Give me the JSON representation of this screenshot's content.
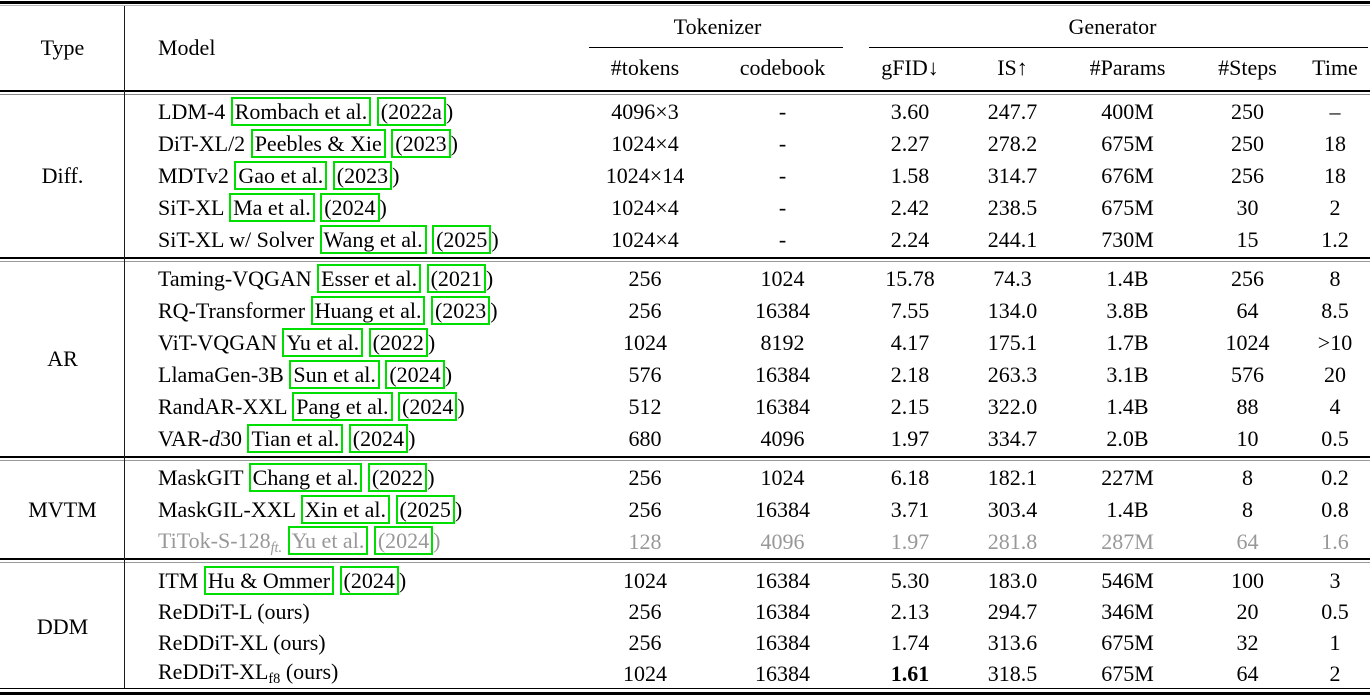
{
  "table": {
    "header": {
      "col_type": "Type",
      "col_model": "Model",
      "group_tokenizer": "Tokenizer",
      "group_generator": "Generator",
      "sub_columns": [
        "#tokens",
        "codebook",
        "gFID↓",
        "IS↑",
        "#Params",
        "#Steps",
        "Time"
      ]
    },
    "accent_colors": {
      "citation_box_green": "#00dd00",
      "muted_text_gray": "#989898"
    },
    "groups": [
      {
        "key": "diff",
        "type": "Diff.",
        "rows": [
          {
            "model_parts": [
              {
                "text": "LDM-4 "
              },
              {
                "text": "Rombach et al.",
                "box": true
              },
              {
                "text": " "
              },
              {
                "text": "(2022a",
                "box": true
              },
              {
                "text": ")"
              }
            ],
            "tokens": "4096×3",
            "codebook": "-",
            "gfid": "3.60",
            "is": "247.7",
            "params": "400M",
            "steps": "250",
            "time": "–"
          },
          {
            "model_parts": [
              {
                "text": "DiT-XL/2 "
              },
              {
                "text": "Peebles & Xie",
                "box": true
              },
              {
                "text": " "
              },
              {
                "text": "(2023",
                "box": true
              },
              {
                "text": ")"
              }
            ],
            "tokens": "1024×4",
            "codebook": "-",
            "gfid": "2.27",
            "is": "278.2",
            "params": "675M",
            "steps": "250",
            "time": "18"
          },
          {
            "model_parts": [
              {
                "text": "MDTv2 "
              },
              {
                "text": "Gao et al.",
                "box": true
              },
              {
                "text": " "
              },
              {
                "text": "(2023",
                "box": true
              },
              {
                "text": ")"
              }
            ],
            "tokens": "1024×14",
            "codebook": "-",
            "gfid": "1.58",
            "is": "314.7",
            "params": "676M",
            "steps": "256",
            "time": "18"
          },
          {
            "model_parts": [
              {
                "text": "SiT-XL "
              },
              {
                "text": "Ma et al.",
                "box": true
              },
              {
                "text": " "
              },
              {
                "text": "(2024",
                "box": true
              },
              {
                "text": ")"
              }
            ],
            "tokens": "1024×4",
            "codebook": "-",
            "gfid": "2.42",
            "is": "238.5",
            "params": "675M",
            "steps": "30",
            "time": "2"
          },
          {
            "model_parts": [
              {
                "text": "SiT-XL w/ Solver "
              },
              {
                "text": "Wang et al.",
                "box": true
              },
              {
                "text": " "
              },
              {
                "text": "(2025",
                "box": true
              },
              {
                "text": ")"
              }
            ],
            "tokens": "1024×4",
            "codebook": "-",
            "gfid": "2.24",
            "is": "244.1",
            "params": "730M",
            "steps": "15",
            "time": "1.2"
          }
        ]
      },
      {
        "key": "ar",
        "type": "AR",
        "rows": [
          {
            "model_parts": [
              {
                "text": "Taming-VQGAN "
              },
              {
                "text": "Esser et al.",
                "box": true
              },
              {
                "text": " "
              },
              {
                "text": "(2021",
                "box": true
              },
              {
                "text": ")"
              }
            ],
            "tokens": "256",
            "codebook": "1024",
            "gfid": "15.78",
            "is": "74.3",
            "params": "1.4B",
            "steps": "256",
            "time": "8"
          },
          {
            "model_parts": [
              {
                "text": "RQ-Transformer "
              },
              {
                "text": "Huang et al.",
                "box": true
              },
              {
                "text": " "
              },
              {
                "text": "(2023",
                "box": true
              },
              {
                "text": ")"
              }
            ],
            "tokens": "256",
            "codebook": "16384",
            "gfid": "7.55",
            "is": "134.0",
            "params": "3.8B",
            "steps": "64",
            "time": "8.5"
          },
          {
            "model_parts": [
              {
                "text": "ViT-VQGAN "
              },
              {
                "text": "Yu et al.",
                "box": true
              },
              {
                "text": " "
              },
              {
                "text": "(2022",
                "box": true
              },
              {
                "text": ")"
              }
            ],
            "tokens": "1024",
            "codebook": "8192",
            "gfid": "4.17",
            "is": "175.1",
            "params": "1.7B",
            "steps": "1024",
            "time": ">10"
          },
          {
            "model_parts": [
              {
                "text": "LlamaGen-3B "
              },
              {
                "text": "Sun et al.",
                "box": true
              },
              {
                "text": " "
              },
              {
                "text": "(2024",
                "box": true
              },
              {
                "text": ")"
              }
            ],
            "tokens": "576",
            "codebook": "16384",
            "gfid": "2.18",
            "is": "263.3",
            "params": "3.1B",
            "steps": "576",
            "time": "20"
          },
          {
            "model_parts": [
              {
                "text": "RandAR-XXL "
              },
              {
                "text": "Pang et al.",
                "box": true
              },
              {
                "text": " "
              },
              {
                "text": "(2024",
                "box": true
              },
              {
                "text": ")"
              }
            ],
            "tokens": "512",
            "codebook": "16384",
            "gfid": "2.15",
            "is": "322.0",
            "params": "1.4B",
            "steps": "88",
            "time": "4"
          },
          {
            "model_parts": [
              {
                "text": "VAR-"
              },
              {
                "text": "d",
                "italic": true
              },
              {
                "text": "30 "
              },
              {
                "text": "Tian et al.",
                "box": true
              },
              {
                "text": " "
              },
              {
                "text": "(2024",
                "box": true
              },
              {
                "text": ")"
              }
            ],
            "tokens": "680",
            "codebook": "4096",
            "gfid": "1.97",
            "is": "334.7",
            "params": "2.0B",
            "steps": "10",
            "time": "0.5"
          }
        ]
      },
      {
        "key": "mvtm",
        "type": "MVTM",
        "rows": [
          {
            "model_parts": [
              {
                "text": "MaskGIT "
              },
              {
                "text": "Chang et al.",
                "box": true
              },
              {
                "text": " "
              },
              {
                "text": "(2022",
                "box": true
              },
              {
                "text": ")"
              }
            ],
            "tokens": "256",
            "codebook": "1024",
            "gfid": "6.18",
            "is": "182.1",
            "params": "227M",
            "steps": "8",
            "time": "0.2"
          },
          {
            "model_parts": [
              {
                "text": "MaskGIL-XXL "
              },
              {
                "text": "Xin et al.",
                "box": true
              },
              {
                "text": " "
              },
              {
                "text": "(2025",
                "box": true
              },
              {
                "text": ")"
              }
            ],
            "tokens": "256",
            "codebook": "16384",
            "gfid": "3.71",
            "is": "303.4",
            "params": "1.4B",
            "steps": "8",
            "time": "0.8"
          },
          {
            "muted": true,
            "model_parts": [
              {
                "text": "TiTok-S-128"
              },
              {
                "text": "ft.",
                "sub": true,
                "italic": true
              },
              {
                "text": " "
              },
              {
                "text": "Yu et al.",
                "box": true
              },
              {
                "text": " "
              },
              {
                "text": "(2024",
                "box": true
              },
              {
                "text": ")"
              }
            ],
            "tokens": "128",
            "codebook": "4096",
            "gfid": "1.97",
            "is": "281.8",
            "params": "287M",
            "steps": "64",
            "time": "1.6"
          }
        ]
      },
      {
        "key": "ddm",
        "type": "DDM",
        "rows": [
          {
            "model_parts": [
              {
                "text": "ITM "
              },
              {
                "text": "Hu & Ommer",
                "box": true
              },
              {
                "text": " "
              },
              {
                "text": "(2024",
                "box": true
              },
              {
                "text": ")"
              }
            ],
            "tokens": "1024",
            "codebook": "16384",
            "gfid": "5.30",
            "is": "183.0",
            "params": "546M",
            "steps": "100",
            "time": "3"
          },
          {
            "model_parts": [
              {
                "text": "ReDDiT-L (ours)"
              }
            ],
            "tokens": "256",
            "codebook": "16384",
            "gfid": "2.13",
            "is": "294.7",
            "params": "346M",
            "steps": "20",
            "time": "0.5"
          },
          {
            "model_parts": [
              {
                "text": "ReDDiT-XL (ours)"
              }
            ],
            "tokens": "256",
            "codebook": "16384",
            "gfid": "1.74",
            "is": "313.6",
            "params": "675M",
            "steps": "32",
            "time": "1"
          },
          {
            "model_parts": [
              {
                "text": "ReDDiT-XL"
              },
              {
                "text": "f8",
                "sub": true
              },
              {
                "text": " (ours)"
              }
            ],
            "tokens": "1024",
            "codebook": "16384",
            "gfid": "1.61",
            "gfid_bold": true,
            "is": "318.5",
            "params": "675M",
            "steps": "64",
            "time": "2"
          }
        ]
      }
    ]
  }
}
